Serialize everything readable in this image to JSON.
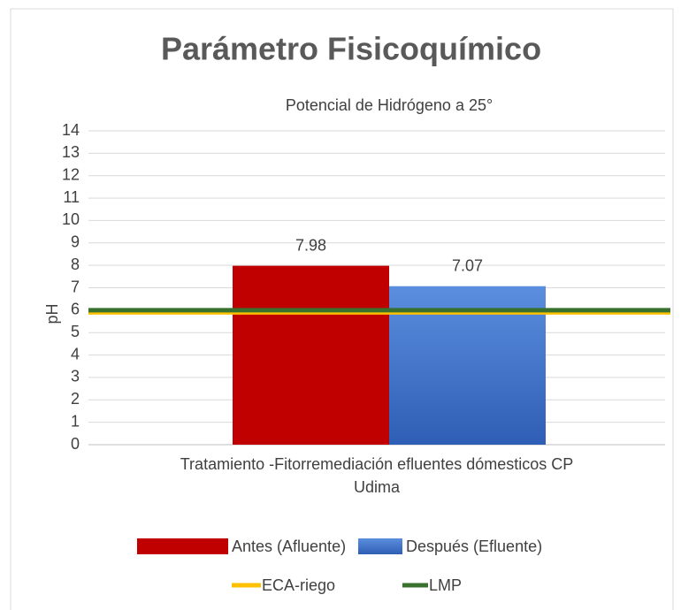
{
  "chart_data": {
    "type": "bar",
    "title": "Parámetro Fisicoquímico",
    "subtitle": "Potencial de Hidrógeno a 25°",
    "y_label": "pH",
    "categories": [
      "Tratamiento -Fitorremediación efluentes dómesticos CP Udima"
    ],
    "series": [
      {
        "name": "Antes (Afluente)",
        "color": "#c00000",
        "values": [
          7.98
        ]
      },
      {
        "name": "Después (Efluente)",
        "color": "#4a7fd4",
        "values": [
          7.07
        ]
      }
    ],
    "reference_lines": [
      {
        "name": "ECA-riego",
        "color": "#ffc000",
        "value": 5.9
      },
      {
        "name": "LMP",
        "color": "#38702e",
        "value": 6.0
      }
    ],
    "ylim": [
      0,
      14
    ],
    "yticks": [
      0,
      1,
      2,
      3,
      4,
      5,
      6,
      7,
      8,
      9,
      10,
      11,
      12,
      13,
      14
    ],
    "grid": true
  }
}
